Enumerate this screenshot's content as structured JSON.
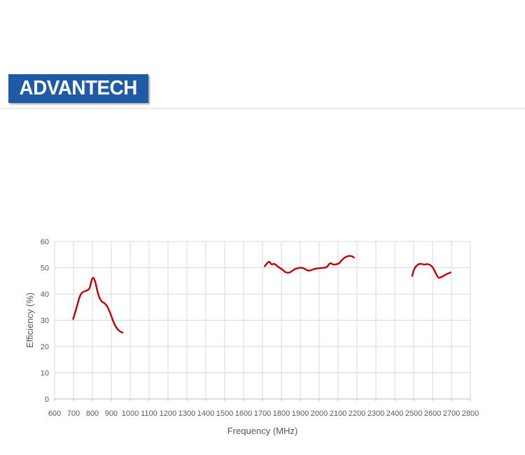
{
  "logo": {
    "text": "ADVANTECH",
    "bg_color": "#1e5aa5",
    "text_color": "#ffffff"
  },
  "chart_data": {
    "type": "line",
    "title": "",
    "xlabel": "Frequency (MHz)",
    "ylabel": "Efficiency (%)",
    "xlim": [
      600,
      2800
    ],
    "ylim": [
      0,
      60
    ],
    "x_ticks": [
      600,
      700,
      800,
      900,
      1000,
      1100,
      1200,
      1300,
      1400,
      1500,
      1600,
      1700,
      1800,
      1900,
      2000,
      2100,
      2200,
      2300,
      2400,
      2500,
      2600,
      2700,
      2800
    ],
    "y_ticks": [
      0,
      10,
      20,
      30,
      40,
      50,
      60
    ],
    "grid": true,
    "legend": "none",
    "line_color": "#c00000",
    "grid_color": "#d9d9d9",
    "axis_line_color": "#bfbfbf",
    "tick_label_color": "#595959",
    "series": [
      {
        "points": [
          [
            698,
            30.5
          ],
          [
            708,
            32.8
          ],
          [
            718,
            35.3
          ],
          [
            731,
            38.6
          ],
          [
            743,
            40.3
          ],
          [
            757,
            41.0
          ],
          [
            772,
            41.4
          ],
          [
            785,
            42.3
          ],
          [
            796,
            45.2
          ],
          [
            805,
            46.2
          ],
          [
            815,
            44.6
          ],
          [
            824,
            41.8
          ],
          [
            836,
            38.8
          ],
          [
            849,
            37.2
          ],
          [
            862,
            36.6
          ],
          [
            875,
            35.6
          ],
          [
            888,
            33.8
          ],
          [
            900,
            31.6
          ],
          [
            912,
            29.3
          ],
          [
            925,
            27.4
          ],
          [
            938,
            26.2
          ],
          [
            950,
            25.6
          ],
          [
            960,
            25.3
          ]
        ]
      },
      {
        "points": [
          [
            1712,
            50.6
          ],
          [
            1722,
            51.5
          ],
          [
            1735,
            52.3
          ],
          [
            1748,
            51.3
          ],
          [
            1762,
            51.5
          ],
          [
            1775,
            50.8
          ],
          [
            1790,
            50.0
          ],
          [
            1805,
            49.3
          ],
          [
            1820,
            48.4
          ],
          [
            1838,
            48.1
          ],
          [
            1855,
            48.7
          ],
          [
            1872,
            49.5
          ],
          [
            1890,
            49.9
          ],
          [
            1905,
            50.0
          ],
          [
            1920,
            49.7
          ],
          [
            1935,
            49.1
          ],
          [
            1948,
            48.9
          ],
          [
            1962,
            49.2
          ],
          [
            1978,
            49.6
          ],
          [
            1995,
            49.8
          ],
          [
            2010,
            49.9
          ],
          [
            2025,
            50.0
          ],
          [
            2040,
            50.3
          ],
          [
            2058,
            51.7
          ],
          [
            2075,
            51.2
          ],
          [
            2090,
            51.3
          ],
          [
            2105,
            51.7
          ],
          [
            2120,
            52.9
          ],
          [
            2138,
            54.0
          ],
          [
            2158,
            54.5
          ],
          [
            2172,
            54.4
          ],
          [
            2184,
            53.9
          ]
        ]
      },
      {
        "points": [
          [
            2492,
            46.9
          ],
          [
            2502,
            49.3
          ],
          [
            2512,
            50.5
          ],
          [
            2525,
            51.3
          ],
          [
            2540,
            51.5
          ],
          [
            2555,
            51.2
          ],
          [
            2572,
            51.4
          ],
          [
            2588,
            51.0
          ],
          [
            2602,
            50.0
          ],
          [
            2615,
            48.2
          ],
          [
            2630,
            46.3
          ],
          [
            2645,
            46.4
          ],
          [
            2660,
            47.0
          ],
          [
            2678,
            47.7
          ],
          [
            2695,
            48.2
          ]
        ]
      }
    ]
  }
}
